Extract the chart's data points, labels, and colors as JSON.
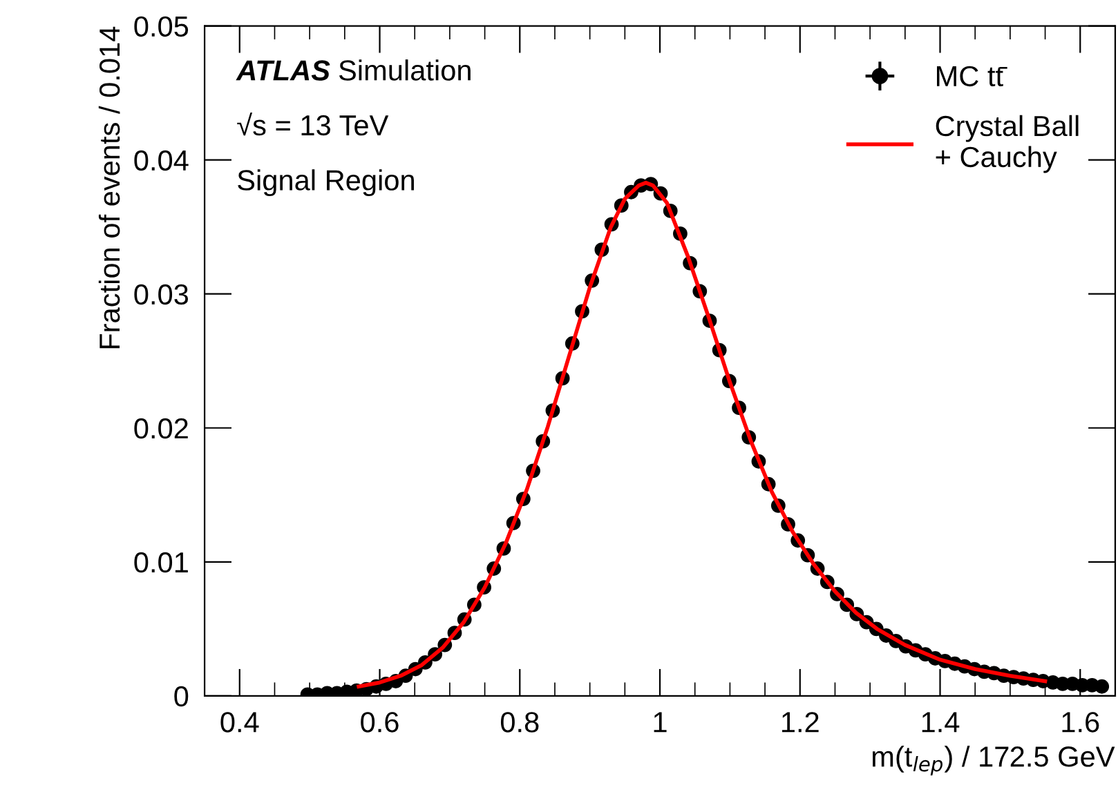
{
  "chart_data": {
    "type": "scatter",
    "xlabel": "m(t$_{lep}$) / 172.5 GeV",
    "ylabel": "Fraction of events / 0.014",
    "annotations": [
      "ATLAS Simulation",
      "√s = 13 TeV",
      "Signal Region"
    ],
    "x": [
      0.497,
      0.511,
      0.525,
      0.539,
      0.553,
      0.567,
      0.581,
      0.595,
      0.609,
      0.623,
      0.637,
      0.651,
      0.665,
      0.679,
      0.693,
      0.707,
      0.721,
      0.735,
      0.749,
      0.763,
      0.777,
      0.791,
      0.805,
      0.819,
      0.833,
      0.847,
      0.861,
      0.875,
      0.889,
      0.903,
      0.917,
      0.931,
      0.945,
      0.959,
      0.973,
      0.987,
      1.001,
      1.015,
      1.029,
      1.043,
      1.057,
      1.071,
      1.085,
      1.099,
      1.113,
      1.127,
      1.141,
      1.155,
      1.169,
      1.183,
      1.197,
      1.211,
      1.225,
      1.239,
      1.253,
      1.267,
      1.281,
      1.295,
      1.309,
      1.323,
      1.337,
      1.351,
      1.365,
      1.379,
      1.393,
      1.407,
      1.421,
      1.435,
      1.449,
      1.463,
      1.477,
      1.491,
      1.505,
      1.519,
      1.533,
      1.547,
      1.561,
      1.575,
      1.589,
      1.603,
      1.617,
      1.631
    ],
    "series": [
      {
        "name": "MC tt̄",
        "color": "#000000",
        "marker": "circle",
        "values": [
          0.0001,
          0.0001,
          0.0002,
          0.0002,
          0.0003,
          0.0004,
          0.0005,
          0.0007,
          0.0009,
          0.0011,
          0.0015,
          0.002,
          0.0025,
          0.0031,
          0.0038,
          0.0047,
          0.0057,
          0.0068,
          0.0081,
          0.0095,
          0.011,
          0.0129,
          0.0147,
          0.0168,
          0.019,
          0.0213,
          0.0237,
          0.0263,
          0.0287,
          0.031,
          0.0333,
          0.0352,
          0.0366,
          0.0376,
          0.0381,
          0.0382,
          0.0375,
          0.0362,
          0.0345,
          0.0323,
          0.0302,
          0.028,
          0.0258,
          0.0235,
          0.0215,
          0.0193,
          0.0175,
          0.0158,
          0.0142,
          0.0128,
          0.0116,
          0.0105,
          0.0095,
          0.0085,
          0.0076,
          0.0068,
          0.0061,
          0.0055,
          0.005,
          0.0045,
          0.0041,
          0.0037,
          0.0034,
          0.0031,
          0.0028,
          0.0026,
          0.0024,
          0.0022,
          0.002,
          0.0018,
          0.0017,
          0.0015,
          0.0014,
          0.0013,
          0.0012,
          0.0011,
          0.001,
          0.0009,
          0.0009,
          0.0008,
          0.0008,
          0.0007
        ]
      },
      {
        "name": "Crystal Ball\n+ Cauchy",
        "type": "line",
        "color": "#ff0000",
        "line_style": "solid",
        "x": [
          0.57,
          0.6,
          0.63,
          0.66,
          0.69,
          0.72,
          0.75,
          0.78,
          0.81,
          0.84,
          0.87,
          0.9,
          0.93,
          0.95,
          0.97,
          0.98,
          0.99,
          1.01,
          1.04,
          1.07,
          1.1,
          1.13,
          1.16,
          1.19,
          1.22,
          1.25,
          1.28,
          1.31,
          1.35,
          1.4,
          1.45,
          1.5,
          1.55
        ],
        "values": [
          0.0007,
          0.001,
          0.0015,
          0.0023,
          0.0036,
          0.0055,
          0.0081,
          0.0114,
          0.0154,
          0.0201,
          0.0253,
          0.0305,
          0.035,
          0.0371,
          0.0381,
          0.0383,
          0.0381,
          0.0368,
          0.0328,
          0.0282,
          0.0234,
          0.019,
          0.0152,
          0.0122,
          0.0098,
          0.0078,
          0.0062,
          0.005,
          0.0038,
          0.0027,
          0.002,
          0.0015,
          0.0011
        ]
      }
    ],
    "xlim": [
      0.35,
      1.65
    ],
    "xticks": [
      0.4,
      0.6,
      0.8,
      1,
      1.2,
      1.4,
      1.6
    ],
    "ylim": [
      0,
      0.05
    ],
    "yticks": [
      0,
      0.01,
      0.02,
      0.03,
      0.04,
      0.05
    ],
    "grid": false,
    "legend": "top right"
  }
}
